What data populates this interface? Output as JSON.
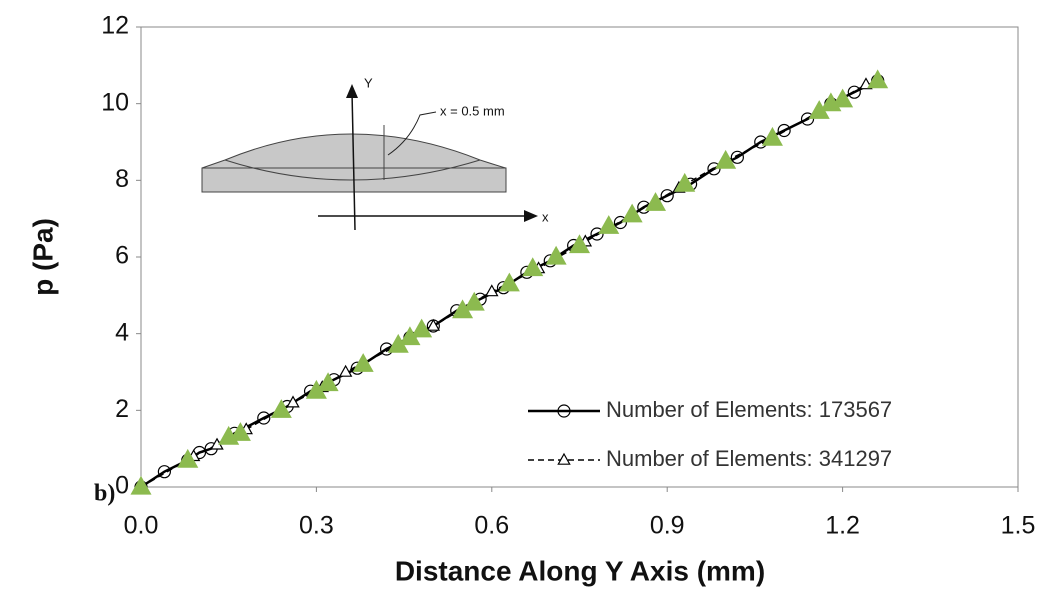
{
  "chart_data": {
    "type": "scatter",
    "x_label": "Distance Along Y Axis (mm)",
    "y_label": "p (Pa)",
    "xlim": [
      0,
      1.5
    ],
    "ylim": [
      0,
      12
    ],
    "xticks": [
      {
        "value": 0,
        "label": "0.0"
      },
      0.3,
      0.6,
      0.9,
      1.2,
      1.5
    ],
    "yticks": [
      0,
      2,
      4,
      6,
      8,
      10,
      12
    ],
    "legend": "lower right",
    "series": [
      {
        "name": "Number of Elements: 173567",
        "color": "#000000",
        "line_style": "solid",
        "marker": "circle",
        "marker_fill": "none",
        "x": [
          0,
          0.04,
          0.08,
          0.1,
          0.12,
          0.16,
          0.21,
          0.25,
          0.29,
          0.33,
          0.37,
          0.42,
          0.46,
          0.5,
          0.54,
          0.58,
          0.62,
          0.66,
          0.7,
          0.74,
          0.78,
          0.82,
          0.86,
          0.9,
          0.94,
          0.98,
          1.02,
          1.06,
          1.1,
          1.14,
          1.18,
          1.22,
          1.26
        ],
        "values": [
          0,
          0.4,
          0.7,
          0.9,
          1.0,
          1.4,
          1.8,
          2.1,
          2.5,
          2.8,
          3.1,
          3.6,
          3.9,
          4.2,
          4.6,
          4.9,
          5.2,
          5.6,
          5.9,
          6.3,
          6.6,
          6.9,
          7.3,
          7.6,
          7.9,
          8.3,
          8.6,
          9.0,
          9.3,
          9.6,
          10.0,
          10.3,
          10.6
        ]
      },
      {
        "name": "Number of Elements: 341297",
        "color": "#000000",
        "line_style": "dashed",
        "marker": "triangle",
        "marker_fill": "none",
        "x": [
          0,
          0.09,
          0.13,
          0.18,
          0.26,
          0.31,
          0.35,
          0.44,
          0.5,
          0.6,
          0.68,
          0.76,
          0.84,
          0.92,
          1.0,
          1.08,
          1.16,
          1.24
        ],
        "values": [
          0,
          0.8,
          1.1,
          1.5,
          2.2,
          2.6,
          3.0,
          3.7,
          4.2,
          5.1,
          5.7,
          6.4,
          7.1,
          7.8,
          8.5,
          9.1,
          9.8,
          10.5
        ]
      },
      {
        "color": "#8cba4f",
        "line_style": "none",
        "marker": "triangle",
        "marker_fill": "#8cba4f",
        "x": [
          0,
          0.08,
          0.15,
          0.17,
          0.24,
          0.3,
          0.32,
          0.38,
          0.44,
          0.46,
          0.48,
          0.55,
          0.57,
          0.63,
          0.67,
          0.71,
          0.75,
          0.8,
          0.84,
          0.88,
          0.93,
          1.0,
          1.08,
          1.16,
          1.18,
          1.2,
          1.26
        ],
        "values": [
          0,
          0.7,
          1.3,
          1.4,
          2.0,
          2.5,
          2.7,
          3.2,
          3.7,
          3.9,
          4.1,
          4.6,
          4.8,
          5.3,
          5.7,
          6.0,
          6.3,
          6.8,
          7.1,
          7.4,
          7.9,
          8.5,
          9.1,
          9.8,
          10.0,
          10.1,
          10.6
        ]
      }
    ]
  },
  "inset": {
    "y_axis": "Y",
    "x_axis": "x",
    "annotation": "x = 0.5 mm"
  },
  "panel_label": "b)"
}
